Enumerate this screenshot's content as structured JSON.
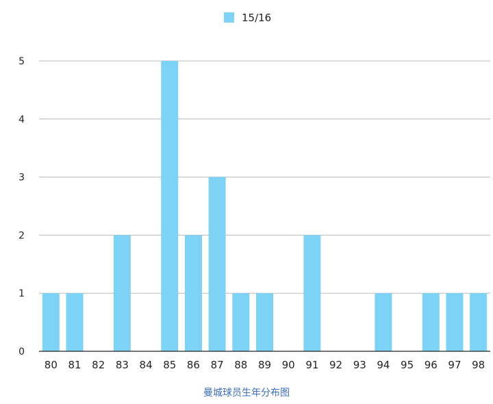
{
  "chart_data": {
    "type": "bar",
    "caption": "曼城球员生年分布图",
    "categories": [
      "80",
      "81",
      "82",
      "83",
      "84",
      "85",
      "86",
      "87",
      "88",
      "89",
      "90",
      "91",
      "92",
      "93",
      "94",
      "95",
      "96",
      "97",
      "98"
    ],
    "series": [
      {
        "name": "15/16",
        "values": [
          1,
          1,
          0,
          2,
          0,
          5,
          2,
          3,
          1,
          1,
          0,
          2,
          0,
          0,
          1,
          0,
          1,
          1,
          1
        ]
      }
    ],
    "yticks": [
      "0",
      "1",
      "2",
      "3",
      "4",
      "5"
    ],
    "ylim": [
      0,
      5
    ],
    "grid": true,
    "legend_position": "top-center",
    "colors": {
      "bar": "#7dd3f5",
      "grid": "#b8b8b8",
      "axis": "#222222",
      "text": "#222222",
      "caption": "#3b6dbd"
    }
  }
}
